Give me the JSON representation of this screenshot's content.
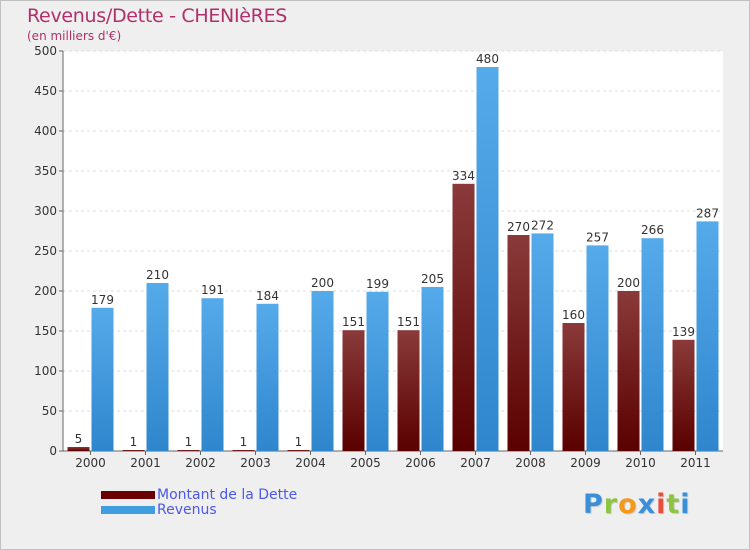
{
  "header": {
    "title": "Revenus/Dette - CHENIèRES",
    "subtitle": "(en milliers d'€)"
  },
  "legend": {
    "items": [
      {
        "label": "Montant de la Dette",
        "color": "#6b0000"
      },
      {
        "label": "Revenus",
        "color": "#3f9de0"
      }
    ]
  },
  "logo": {
    "letters": [
      {
        "char": "P",
        "color": "#3a8fd8"
      },
      {
        "char": "r",
        "color": "#8cc63f"
      },
      {
        "char": "o",
        "color": "#f39a1e"
      },
      {
        "char": "x",
        "color": "#3a8fd8"
      },
      {
        "char": "i",
        "color": "#e94e3c"
      },
      {
        "char": "t",
        "color": "#8cc63f"
      },
      {
        "char": "i",
        "color": "#3a8fd8"
      }
    ]
  },
  "chart_data": {
    "type": "bar",
    "title": "Revenus/Dette - CHENIèRES",
    "subtitle": "(en milliers d'€)",
    "categories": [
      "2000",
      "2001",
      "2002",
      "2003",
      "2004",
      "2005",
      "2006",
      "2007",
      "2008",
      "2009",
      "2010",
      "2011"
    ],
    "series": [
      {
        "name": "Montant de la Dette",
        "color": "#6b0000",
        "values": [
          5,
          1,
          1,
          1,
          1,
          151,
          151,
          334,
          270,
          160,
          200,
          139
        ]
      },
      {
        "name": "Revenus",
        "color": "#3f9de0",
        "values": [
          179,
          210,
          191,
          184,
          200,
          199,
          205,
          480,
          272,
          257,
          266,
          287
        ]
      }
    ],
    "ylim": [
      0,
      500
    ],
    "yticks": [
      0,
      50,
      100,
      150,
      200,
      250,
      300,
      350,
      400,
      450,
      500
    ],
    "grid": true,
    "legend_position": "bottom-left"
  }
}
